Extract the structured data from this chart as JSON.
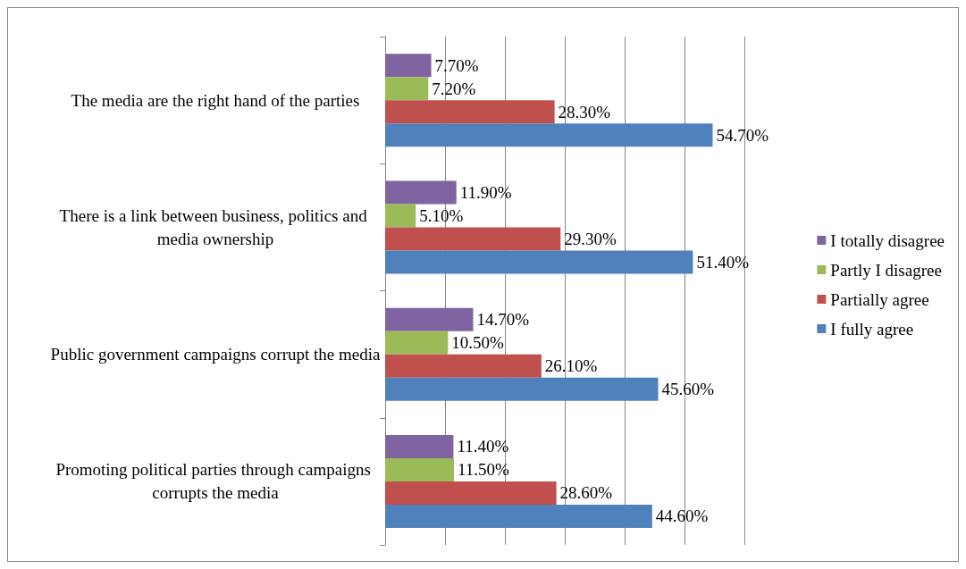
{
  "chart_data": {
    "type": "bar",
    "orientation": "horizontal",
    "categories": [
      "The media are the right hand of the parties",
      "There is a link between business, politics and media ownership",
      "Public government campaigns corrupt the media",
      "Promoting political parties through campaigns corrupts the media"
    ],
    "series": [
      {
        "name": "I totally disagree",
        "color": "#8064a2",
        "values": [
          7.7,
          11.9,
          14.7,
          11.4
        ],
        "value_labels": [
          "7.70%",
          "11.90%",
          "14.70%",
          "11.40%"
        ]
      },
      {
        "name": "Partly I disagree",
        "color": "#9bbb59",
        "values": [
          7.2,
          5.1,
          10.5,
          11.5
        ],
        "value_labels": [
          "7.20%",
          "5.10%",
          "10.50%",
          "11.50%"
        ]
      },
      {
        "name": "Partially agree",
        "color": "#c0504d",
        "values": [
          28.3,
          29.3,
          26.1,
          28.6
        ],
        "value_labels": [
          "28.30%",
          "29.30%",
          "26.10%",
          "28.60%"
        ]
      },
      {
        "name": "I fully agree",
        "color": "#4f81bd",
        "values": [
          54.7,
          51.4,
          45.6,
          44.6
        ],
        "value_labels": [
          "54.70%",
          "51.40%",
          "45.60%",
          "44.60%"
        ]
      }
    ],
    "xlim": [
      0,
      60
    ],
    "xticks": [
      {
        "value": 0,
        "label": null
      },
      {
        "value": 10,
        "label": null
      },
      {
        "value": 20,
        "label": null
      },
      {
        "value": 30,
        "label": null
      },
      {
        "value": 40,
        "label": null
      },
      {
        "value": 50,
        "label": null
      },
      {
        "value": 60,
        "label": null
      }
    ],
    "tick_labels": "y",
    "grid": "x",
    "legend": "right"
  }
}
